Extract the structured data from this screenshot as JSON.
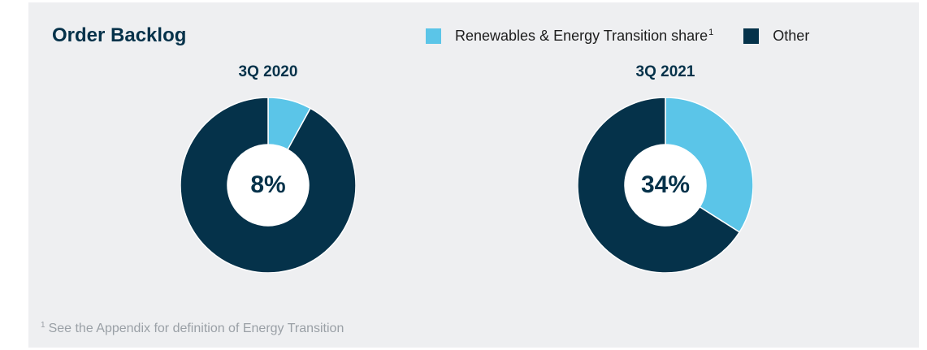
{
  "title": "Order Backlog",
  "legend": [
    {
      "label": "Renewables & Energy Transition share",
      "sup": "1",
      "color": "#5bc5e8"
    },
    {
      "label": "Other",
      "sup": "",
      "color": "#05324a"
    }
  ],
  "footnote": {
    "marker": "1",
    "text": "See the Appendix for definition of Energy Transition"
  },
  "chart_data": [
    {
      "type": "pie",
      "title": "3Q 2020",
      "center_label": "8%",
      "categories": [
        "Renewables & Energy Transition share",
        "Other"
      ],
      "values": [
        8,
        92
      ],
      "colors": [
        "#5bc5e8",
        "#05324a"
      ]
    },
    {
      "type": "pie",
      "title": "3Q 2021",
      "center_label": "34%",
      "categories": [
        "Renewables & Energy Transition share",
        "Other"
      ],
      "values": [
        34,
        66
      ],
      "colors": [
        "#5bc5e8",
        "#05324a"
      ]
    }
  ]
}
